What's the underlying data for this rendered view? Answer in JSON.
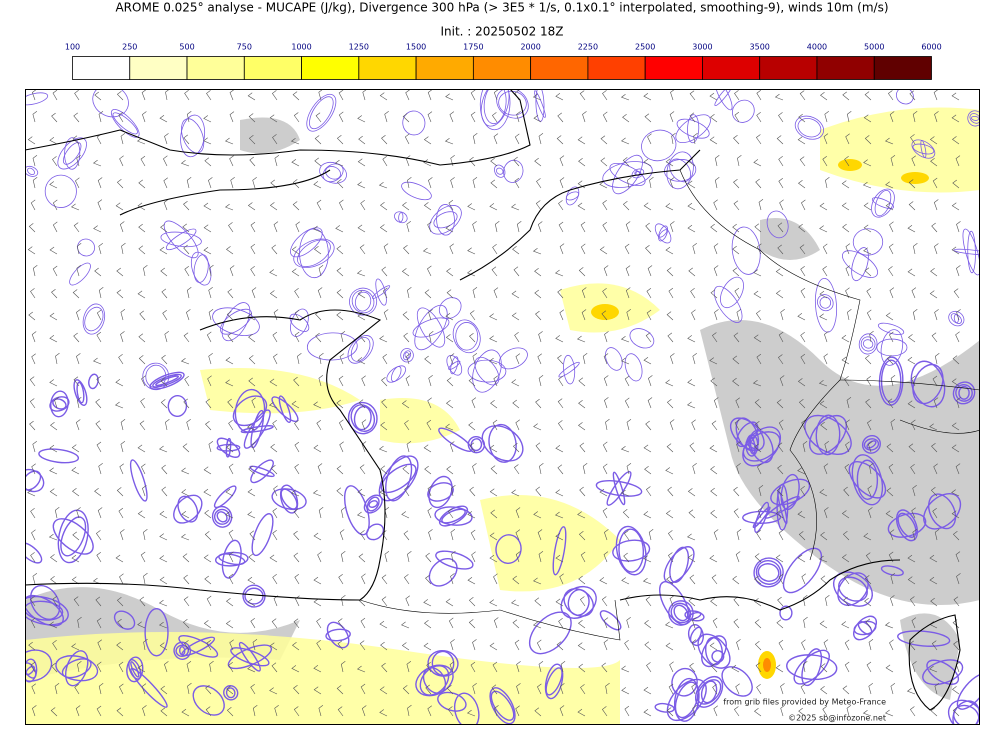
{
  "title": "AROME 0.025° analyse - MUCAPE (J/kg), Divergence 300 hPa (> 3E5 * 1/s, 0.1x0.1° interpolated, smoothing-9), winds 10m (m/s)",
  "subtitle": "Init. : 20250502 18Z",
  "colorbar": {
    "ticks": [
      100,
      250,
      500,
      750,
      1000,
      1250,
      1500,
      1750,
      2000,
      2250,
      2500,
      3000,
      3500,
      4000,
      5000,
      6000
    ],
    "colors": [
      "#ffffff",
      "#ffffc4",
      "#ffff99",
      "#ffff66",
      "#ffff00",
      "#ffd700",
      "#ffaa00",
      "#ff8c00",
      "#ff6600",
      "#ff4000",
      "#ff0000",
      "#dd0000",
      "#b80000",
      "#900000",
      "#600000"
    ]
  },
  "credits": [
    "from grib files provided by Meteo-France",
    "©2025 sb@infozone.net"
  ]
}
